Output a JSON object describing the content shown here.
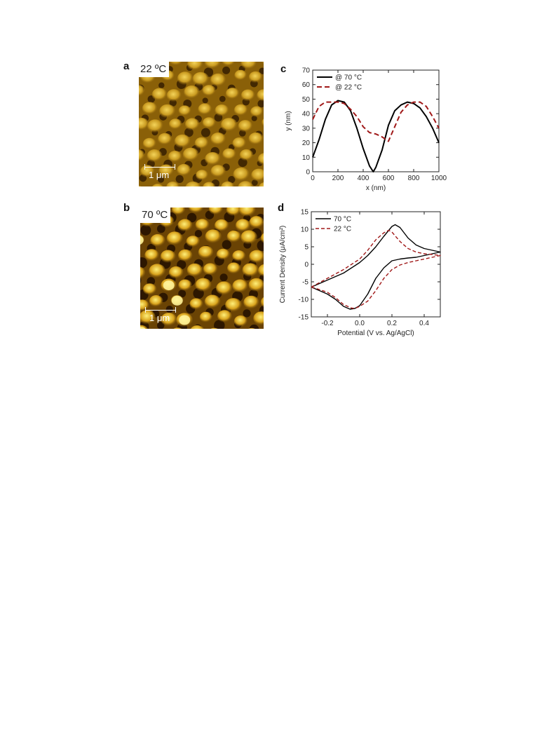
{
  "panels": {
    "a": {
      "letter": "a",
      "temperature": "22 ºC",
      "scale_label": "1 μm"
    },
    "b": {
      "letter": "b",
      "temperature": "70 ºC",
      "scale_label": "1 μm"
    },
    "c": {
      "letter": "c"
    },
    "d": {
      "letter": "d"
    }
  },
  "colors": {
    "series_70": "#000000",
    "series_22": "#a01818",
    "afm_dark": "#2a1500",
    "afm_mid": "#a8780a",
    "afm_light": "#fff07a"
  },
  "chart_data": [
    {
      "id": "c",
      "type": "line",
      "xlabel": "x (nm)",
      "ylabel": "y (nm)",
      "xlim": [
        0,
        1000
      ],
      "ylim": [
        0,
        70
      ],
      "xticks": [
        0,
        200,
        400,
        600,
        800,
        1000
      ],
      "yticks": [
        0,
        10,
        20,
        30,
        40,
        50,
        60,
        70
      ],
      "legend_position": "top-left",
      "grid": false,
      "series": [
        {
          "name": "@ 70 °C",
          "style": "solid",
          "x": [
            0,
            50,
            100,
            150,
            200,
            250,
            300,
            350,
            400,
            450,
            480,
            500,
            550,
            600,
            650,
            700,
            750,
            800,
            850,
            900,
            950,
            1000
          ],
          "y": [
            10,
            22,
            36,
            46,
            49,
            48,
            42,
            30,
            16,
            4,
            0,
            3,
            15,
            32,
            42,
            46,
            48,
            47,
            44,
            38,
            30,
            20
          ]
        },
        {
          "name": "@ 22 °C",
          "style": "dashed",
          "x": [
            0,
            50,
            100,
            150,
            200,
            250,
            300,
            350,
            400,
            450,
            500,
            550,
            600,
            650,
            700,
            750,
            800,
            850,
            900,
            950,
            1000
          ],
          "y": [
            36,
            45,
            48,
            48,
            48,
            47,
            43,
            38,
            31,
            27,
            26,
            24,
            21,
            31,
            41,
            46,
            48,
            48,
            45,
            38,
            30
          ]
        }
      ]
    },
    {
      "id": "d",
      "type": "line",
      "xlabel": "Potential (V vs. Ag/AgCl)",
      "ylabel": "Current Density (μA/cm²)",
      "xlim": [
        -0.3,
        0.5
      ],
      "ylim": [
        -15,
        15
      ],
      "xticks": [
        -0.2,
        0.0,
        0.2,
        0.4
      ],
      "xticklabels": [
        "-0.2",
        "0.0",
        "0.2",
        "0.4"
      ],
      "yticks": [
        -15,
        -10,
        -5,
        0,
        5,
        10,
        15
      ],
      "legend_position": "top-left",
      "grid": false,
      "series": [
        {
          "name": "70 °C",
          "style": "solid",
          "x": [
            -0.3,
            -0.2,
            -0.1,
            0.0,
            0.05,
            0.1,
            0.15,
            0.2,
            0.22,
            0.25,
            0.3,
            0.35,
            0.4,
            0.45,
            0.5,
            0.45,
            0.4,
            0.35,
            0.3,
            0.25,
            0.2,
            0.15,
            0.1,
            0.05,
            0.0,
            -0.03,
            -0.06,
            -0.1,
            -0.15,
            -0.2,
            -0.25,
            -0.3
          ],
          "y": [
            -6.5,
            -4.5,
            -2.5,
            0.5,
            2.5,
            5.0,
            8.0,
            10.8,
            11.3,
            10.5,
            7.5,
            5.5,
            4.5,
            4.0,
            3.5,
            3.0,
            2.5,
            2.0,
            1.8,
            1.5,
            1.0,
            -1.0,
            -4.0,
            -8.5,
            -11.8,
            -12.6,
            -12.8,
            -12.0,
            -10.0,
            -8.5,
            -7.5,
            -6.5
          ]
        },
        {
          "name": "22 °C",
          "style": "dashed",
          "x": [
            -0.3,
            -0.2,
            -0.1,
            0.0,
            0.05,
            0.1,
            0.15,
            0.18,
            0.2,
            0.25,
            0.3,
            0.35,
            0.4,
            0.45,
            0.5,
            0.45,
            0.4,
            0.35,
            0.3,
            0.25,
            0.2,
            0.15,
            0.1,
            0.05,
            0.0,
            -0.03,
            -0.05,
            -0.1,
            -0.15,
            -0.2,
            -0.25,
            -0.3
          ],
          "y": [
            -6.5,
            -4.0,
            -1.5,
            1.5,
            4.0,
            7.0,
            9.0,
            9.7,
            9.2,
            6.5,
            4.5,
            3.5,
            3.0,
            2.8,
            2.5,
            2.0,
            1.5,
            1.0,
            0.5,
            -0.2,
            -1.5,
            -4.0,
            -7.5,
            -10.5,
            -12.0,
            -12.6,
            -12.5,
            -11.5,
            -9.5,
            -8.0,
            -7.2,
            -6.5
          ]
        }
      ]
    }
  ]
}
